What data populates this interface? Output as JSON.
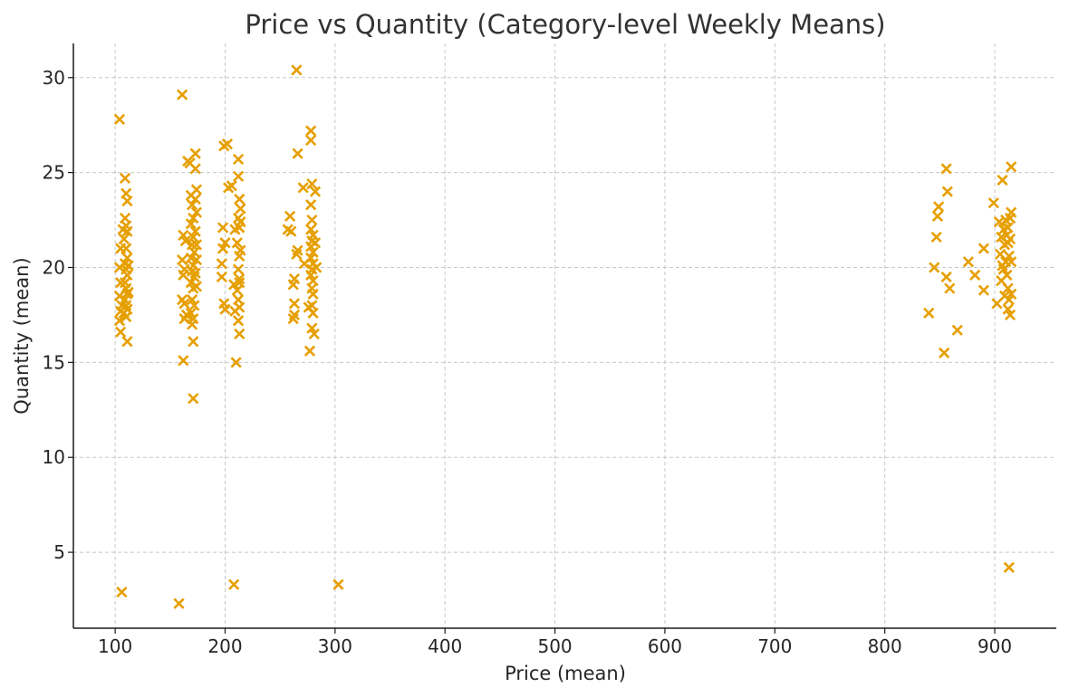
{
  "chart_data": {
    "type": "scatter",
    "title": "Price vs Quantity (Category-level Weekly Means)",
    "xlabel": "Price (mean)",
    "ylabel": "Quantity (mean)",
    "xlim": [
      62,
      956
    ],
    "ylim": [
      1.0,
      31.8
    ],
    "xticks": [
      100,
      200,
      300,
      400,
      500,
      600,
      700,
      800,
      900
    ],
    "yticks": [
      5,
      10,
      15,
      20,
      25,
      30
    ],
    "grid": true,
    "marker": "x",
    "color": "#E69F00",
    "series": [
      {
        "points": [
          [
            104,
            27.8
          ],
          [
            105,
            21.0
          ],
          [
            104,
            20.0
          ],
          [
            105,
            19.2
          ],
          [
            104,
            18.5
          ],
          [
            105,
            17.7
          ],
          [
            104,
            17.2
          ],
          [
            105,
            16.6
          ],
          [
            106,
            18.0
          ],
          [
            107,
            22.0
          ],
          [
            109,
            24.7
          ],
          [
            110,
            23.9
          ],
          [
            111,
            23.5
          ],
          [
            109,
            22.6
          ],
          [
            110,
            22.2
          ],
          [
            111,
            21.9
          ],
          [
            108,
            21.5
          ],
          [
            110,
            21.0
          ],
          [
            111,
            20.5
          ],
          [
            109,
            20.2
          ],
          [
            110,
            19.9
          ],
          [
            111,
            19.6
          ],
          [
            109,
            19.2
          ],
          [
            110,
            18.9
          ],
          [
            111,
            18.6
          ],
          [
            109,
            18.3
          ],
          [
            110,
            18.0
          ],
          [
            111,
            17.8
          ],
          [
            108,
            17.6
          ],
          [
            110,
            17.4
          ],
          [
            111,
            16.1
          ],
          [
            112,
            20.1
          ],
          [
            112,
            18.7
          ],
          [
            106,
            2.9
          ],
          [
            161,
            29.1
          ],
          [
            162,
            21.7
          ],
          [
            164,
            21.4
          ],
          [
            161,
            20.4
          ],
          [
            163,
            19.9
          ],
          [
            162,
            19.6
          ],
          [
            161,
            18.3
          ],
          [
            163,
            18.1
          ],
          [
            165,
            17.5
          ],
          [
            163,
            17.3
          ],
          [
            162,
            15.1
          ],
          [
            166,
            25.6
          ],
          [
            168,
            25.5
          ],
          [
            169,
            23.8
          ],
          [
            170,
            23.3
          ],
          [
            171,
            22.6
          ],
          [
            169,
            22.3
          ],
          [
            171,
            21.6
          ],
          [
            170,
            21.2
          ],
          [
            172,
            20.8
          ],
          [
            169,
            20.5
          ],
          [
            171,
            20.1
          ],
          [
            170,
            19.8
          ],
          [
            172,
            19.5
          ],
          [
            169,
            19.2
          ],
          [
            171,
            18.9
          ],
          [
            170,
            18.3
          ],
          [
            172,
            18.0
          ],
          [
            169,
            17.6
          ],
          [
            171,
            17.3
          ],
          [
            170,
            17.0
          ],
          [
            171,
            16.1
          ],
          [
            171,
            13.1
          ],
          [
            173,
            26.0
          ],
          [
            173,
            25.2
          ],
          [
            174,
            24.1
          ],
          [
            173,
            23.6
          ],
          [
            174,
            22.9
          ],
          [
            173,
            21.9
          ],
          [
            174,
            21.2
          ],
          [
            174,
            20.4
          ],
          [
            173,
            19.7
          ],
          [
            174,
            19.0
          ],
          [
            158,
            2.3
          ],
          [
            199,
            26.4
          ],
          [
            202,
            26.5
          ],
          [
            203,
            24.2
          ],
          [
            198,
            22.1
          ],
          [
            200,
            21.3
          ],
          [
            198,
            21.0
          ],
          [
            197,
            20.2
          ],
          [
            197,
            19.5
          ],
          [
            199,
            18.1
          ],
          [
            200,
            17.8
          ],
          [
            206,
            24.3
          ],
          [
            209,
            22.0
          ],
          [
            208,
            19.1
          ],
          [
            209,
            17.7
          ],
          [
            210,
            15.0
          ],
          [
            212,
            25.7
          ],
          [
            212,
            24.8
          ],
          [
            213,
            23.6
          ],
          [
            212,
            22.6
          ],
          [
            213,
            22.1
          ],
          [
            211,
            21.3
          ],
          [
            213,
            20.6
          ],
          [
            212,
            19.9
          ],
          [
            213,
            19.4
          ],
          [
            211,
            18.8
          ],
          [
            212,
            18.3
          ],
          [
            213,
            17.9
          ],
          [
            212,
            17.2
          ],
          [
            213,
            16.5
          ],
          [
            214,
            23.1
          ],
          [
            214,
            22.4
          ],
          [
            214,
            20.9
          ],
          [
            213,
            19.2
          ],
          [
            208,
            3.3
          ],
          [
            257,
            22.0
          ],
          [
            259,
            22.7
          ],
          [
            260,
            21.9
          ],
          [
            263,
            19.4
          ],
          [
            262,
            19.1
          ],
          [
            263,
            18.1
          ],
          [
            263,
            17.5
          ],
          [
            262,
            17.3
          ],
          [
            265,
            20.7
          ],
          [
            266,
            20.9
          ],
          [
            266,
            26.0
          ],
          [
            265,
            30.4
          ],
          [
            271,
            24.2
          ],
          [
            272,
            20.2
          ],
          [
            276,
            17.9
          ],
          [
            277,
            15.6
          ],
          [
            278,
            27.2
          ],
          [
            278,
            26.7
          ],
          [
            279,
            24.4
          ],
          [
            278,
            23.3
          ],
          [
            279,
            22.5
          ],
          [
            278,
            22.0
          ],
          [
            280,
            21.7
          ],
          [
            279,
            21.4
          ],
          [
            278,
            21.1
          ],
          [
            280,
            20.8
          ],
          [
            278,
            20.5
          ],
          [
            280,
            20.2
          ],
          [
            279,
            19.9
          ],
          [
            278,
            19.6
          ],
          [
            280,
            19.3
          ],
          [
            279,
            18.9
          ],
          [
            280,
            18.6
          ],
          [
            279,
            18.0
          ],
          [
            280,
            17.6
          ],
          [
            279,
            16.8
          ],
          [
            281,
            16.5
          ],
          [
            282,
            24.0
          ],
          [
            282,
            21.3
          ],
          [
            283,
            20.0
          ],
          [
            303,
            3.3
          ],
          [
            840,
            17.6
          ],
          [
            845,
            20.0
          ],
          [
            847,
            21.6
          ],
          [
            848,
            22.7
          ],
          [
            849,
            23.2
          ],
          [
            854,
            15.5
          ],
          [
            856,
            25.2
          ],
          [
            857,
            24.0
          ],
          [
            856,
            19.5
          ],
          [
            859,
            18.9
          ],
          [
            866,
            16.7
          ],
          [
            876,
            20.3
          ],
          [
            882,
            19.6
          ],
          [
            890,
            21.0
          ],
          [
            890,
            18.8
          ],
          [
            899,
            23.4
          ],
          [
            902,
            18.1
          ],
          [
            904,
            22.4
          ],
          [
            906,
            21.6
          ],
          [
            905,
            20.7
          ],
          [
            907,
            20.1
          ],
          [
            906,
            19.3
          ],
          [
            907,
            24.6
          ],
          [
            908,
            22.0
          ],
          [
            909,
            21.2
          ],
          [
            908,
            19.9
          ],
          [
            909,
            18.5
          ],
          [
            910,
            22.5
          ],
          [
            911,
            21.7
          ],
          [
            910,
            20.3
          ],
          [
            911,
            19.6
          ],
          [
            912,
            22.1
          ],
          [
            912,
            21.3
          ],
          [
            913,
            20.6
          ],
          [
            912,
            18.9
          ],
          [
            913,
            18.3
          ],
          [
            912,
            17.8
          ],
          [
            914,
            22.6
          ],
          [
            914,
            21.5
          ],
          [
            914,
            17.5
          ],
          [
            915,
            25.3
          ],
          [
            915,
            22.9
          ],
          [
            915,
            20.3
          ],
          [
            915,
            18.6
          ],
          [
            913,
            4.2
          ]
        ]
      }
    ]
  }
}
